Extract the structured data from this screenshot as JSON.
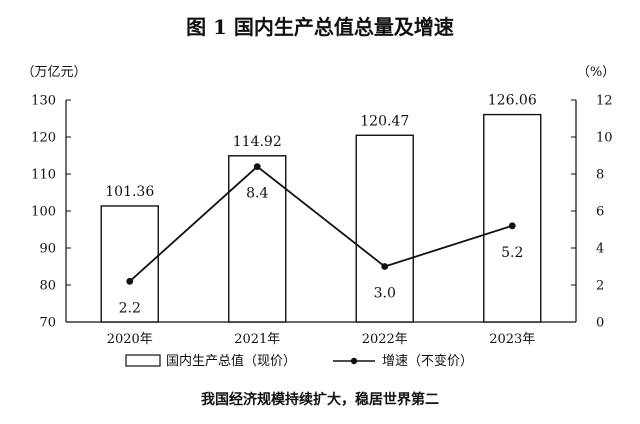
{
  "chart_data": {
    "title": "图 1   国内生产总值总量及增速",
    "caption": "我国经济规模持续扩大，稳居世界第二",
    "categories": [
      "2020年",
      "2021年",
      "2022年",
      "2023年"
    ],
    "left_axis": {
      "unit": "（万亿元）",
      "range": [
        70,
        130
      ],
      "ticks": [
        "70",
        "80",
        "90",
        "100",
        "110",
        "120",
        "130"
      ]
    },
    "right_axis": {
      "unit": "（%）",
      "range": [
        0,
        12
      ],
      "ticks": [
        "0",
        "2",
        "4",
        "6",
        "8",
        "10",
        "12"
      ]
    },
    "series": [
      {
        "name": "国内生产总值（现价）",
        "type": "bar",
        "axis": "left",
        "values": [
          101.36,
          114.92,
          120.47,
          126.06
        ],
        "labels": [
          "101.36",
          "114.92",
          "120.47",
          "126.06"
        ]
      },
      {
        "name": "增速（不变价）",
        "type": "line",
        "axis": "right",
        "values": [
          2.2,
          8.4,
          3.0,
          5.2
        ],
        "labels": [
          "2.2",
          "8.4",
          "3.0",
          "5.2"
        ]
      }
    ],
    "legend_position": "bottom",
    "grid": false
  }
}
